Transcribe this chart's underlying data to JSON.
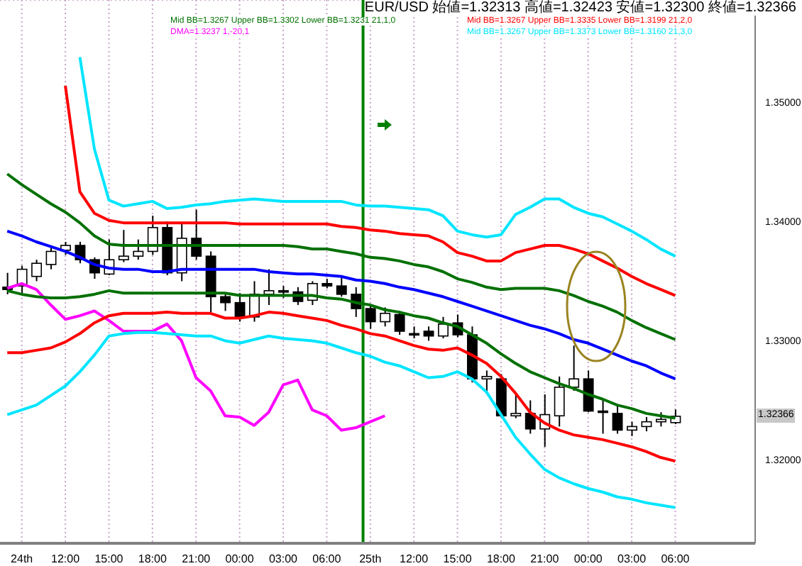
{
  "chart_data": {
    "type": "candlestick",
    "categories": [
      null,
      "24th",
      null,
      null,
      "12:00",
      null,
      null,
      "15:00",
      null,
      null,
      "18:00",
      null,
      null,
      "21:00",
      null,
      null,
      "00:00",
      null,
      null,
      "03:00",
      null,
      null,
      "06:00",
      null,
      null,
      "25th",
      null,
      null,
      "12:00",
      null,
      null,
      "15:00",
      null,
      null,
      "18:00",
      null,
      null,
      "21:00",
      null,
      null,
      "00:00",
      null,
      null,
      "03:00",
      null,
      null,
      "06:00",
      null,
      null,
      null,
      null,
      null
    ],
    "ohlc": [
      [
        1.3345,
        1.3357,
        1.3339,
        1.3343
      ],
      [
        1.3346,
        1.3363,
        1.334,
        1.336
      ],
      [
        1.3354,
        1.3368,
        1.335,
        1.3365
      ],
      [
        1.3364,
        1.338,
        1.336,
        1.3375
      ],
      [
        1.3376,
        1.3383,
        1.3372,
        1.338
      ],
      [
        1.338,
        1.3383,
        1.3365,
        1.3368
      ],
      [
        1.3368,
        1.337,
        1.3352,
        1.3357
      ],
      [
        1.3356,
        1.3385,
        1.3355,
        1.3368
      ],
      [
        1.3368,
        1.3393,
        1.3366,
        1.3371
      ],
      [
        1.3371,
        1.3385,
        1.3368,
        1.3375
      ],
      [
        1.3375,
        1.3405,
        1.3372,
        1.3395
      ],
      [
        1.3395,
        1.34,
        1.3355,
        1.3357
      ],
      [
        1.3357,
        1.3398,
        1.335,
        1.3386
      ],
      [
        1.3386,
        1.341,
        1.3368,
        1.3371
      ],
      [
        1.3371,
        1.3375,
        1.3324,
        1.3337
      ],
      [
        1.3337,
        1.334,
        1.3325,
        1.3332
      ],
      [
        1.3332,
        1.334,
        1.3316,
        1.332
      ],
      [
        1.332,
        1.335,
        1.3316,
        1.3339
      ],
      [
        1.3339,
        1.336,
        1.333,
        1.3342
      ],
      [
        1.3342,
        1.3346,
        1.3336,
        1.3341
      ],
      [
        1.3341,
        1.3345,
        1.333,
        1.3333
      ],
      [
        1.3334,
        1.335,
        1.333,
        1.3348
      ],
      [
        1.3348,
        1.3352,
        1.3344,
        1.3346
      ],
      [
        1.3346,
        1.3355,
        1.3337,
        1.3339
      ],
      [
        1.3339,
        1.3345,
        1.332,
        1.3327
      ],
      [
        1.3327,
        1.333,
        1.331,
        1.3316
      ],
      [
        1.3316,
        1.3328,
        1.3312,
        1.3323
      ],
      [
        1.3322,
        1.3325,
        1.3305,
        1.3308
      ],
      [
        1.3306,
        1.3312,
        1.3302,
        1.3305
      ],
      [
        1.3308,
        1.3312,
        1.33,
        1.3304
      ],
      [
        1.3304,
        1.332,
        1.3302,
        1.3314
      ],
      [
        1.3315,
        1.3322,
        1.3303,
        1.3305
      ],
      [
        1.3305,
        1.3312,
        1.3265,
        1.3268
      ],
      [
        1.3268,
        1.3275,
        1.3255,
        1.327
      ],
      [
        1.3268,
        1.3272,
        1.3236,
        1.3237
      ],
      [
        1.3237,
        1.3255,
        1.3235,
        1.3239
      ],
      [
        1.3239,
        1.325,
        1.3222,
        1.3226
      ],
      [
        1.3226,
        1.3255,
        1.3211,
        1.3238
      ],
      [
        1.3237,
        1.327,
        1.3228,
        1.3261
      ],
      [
        1.3261,
        1.3296,
        1.3258,
        1.3268
      ],
      [
        1.3268,
        1.3275,
        1.324,
        1.3241
      ],
      [
        1.3241,
        1.325,
        1.3222,
        1.324
      ],
      [
        1.3239,
        1.3245,
        1.3222,
        1.3225
      ],
      [
        1.3225,
        1.3232,
        1.322,
        1.3228
      ],
      [
        1.3228,
        1.3236,
        1.3224,
        1.3232
      ],
      [
        1.3232,
        1.324,
        1.3228,
        1.3234
      ],
      [
        1.32313,
        1.32423,
        1.323,
        1.32366
      ],
      null,
      null,
      null,
      null,
      null
    ],
    "series": [
      {
        "type": "line",
        "name": "Mid BB=1.3267 Upper BB=1.3302 Lower BB=1.3231  21,1,0",
        "color": "#007000",
        "values": [
          1.344,
          1.3431,
          1.3423,
          1.3415,
          1.3408,
          1.3399,
          1.3388,
          1.3381,
          1.338,
          1.338,
          1.338,
          1.338,
          1.338,
          1.338,
          1.338,
          1.338,
          1.338,
          1.338,
          1.338,
          1.338,
          1.3379,
          1.3377,
          1.3377,
          1.3375,
          1.3373,
          1.337,
          1.3369,
          1.3367,
          1.3364,
          1.3362,
          1.3358,
          1.3352,
          1.3349,
          1.3345,
          1.3343,
          1.3344,
          1.3344,
          1.3344,
          1.3342,
          1.3338,
          1.3333,
          1.3329,
          1.3324,
          1.3317,
          1.3311,
          1.3306,
          1.3301,
          null,
          null,
          null,
          null,
          null
        ]
      },
      {
        "type": "line",
        "name": "Mid BB=1.3267 Upper BB=1.3335 Lower BB=1.3199  21,2,0",
        "color": "#ff0000",
        "values": [
          null,
          null,
          null,
          null,
          1.3514,
          1.3425,
          1.3407,
          1.3401,
          1.3399,
          1.3399,
          1.3399,
          1.3399,
          1.3399,
          1.3399,
          1.3399,
          1.3399,
          1.3398,
          1.3398,
          1.3398,
          1.3398,
          1.3398,
          1.3398,
          1.3398,
          1.3396,
          1.3395,
          1.3393,
          1.3392,
          1.339,
          1.3389,
          1.3388,
          1.3383,
          1.3374,
          1.3371,
          1.3367,
          1.3367,
          1.3374,
          1.3377,
          1.338,
          1.338,
          1.3377,
          1.3373,
          1.3367,
          1.3361,
          1.3354,
          1.3348,
          1.3343,
          1.3338,
          null,
          null,
          null,
          null,
          null
        ]
      },
      {
        "type": "line",
        "name": "DMA=1.3237  1,-20,1",
        "color": "#ff00ff",
        "values": [
          1.3344,
          1.3348,
          1.3343,
          1.333,
          1.3318,
          1.3321,
          1.3325,
          1.3317,
          1.3308,
          1.3308,
          1.3308,
          1.3314,
          1.33,
          1.3269,
          1.3258,
          1.3237,
          1.3236,
          1.3229,
          1.324,
          1.3263,
          1.3267,
          1.3242,
          1.3237,
          1.3225,
          1.3227,
          1.3232,
          1.3237,
          null,
          null,
          null,
          null,
          null,
          null,
          null,
          null,
          null,
          null,
          null,
          null,
          null,
          null,
          null,
          null,
          null,
          null,
          null,
          null,
          null,
          null,
          null,
          null,
          null
        ]
      },
      {
        "type": "line",
        "name": "Mid BB=1.3267 Upper BB=1.3373 Lower BB=1.3160  21,3,0",
        "color": "#00e5ff",
        "values": [
          null,
          null,
          null,
          null,
          null,
          1.3538,
          1.3461,
          1.3418,
          1.3413,
          1.3415,
          1.3417,
          1.3411,
          1.3412,
          1.3414,
          1.3415,
          1.3417,
          1.3418,
          1.3419,
          1.3418,
          1.3417,
          1.3417,
          1.3417,
          1.3417,
          1.3417,
          1.3414,
          1.3413,
          1.3413,
          1.3412,
          1.3411,
          1.341,
          1.3405,
          1.3392,
          1.3389,
          1.3387,
          1.3389,
          1.3406,
          1.3412,
          1.3419,
          1.3419,
          1.3412,
          1.3407,
          1.3404,
          1.3398,
          1.3392,
          1.3385,
          1.3377,
          1.3371,
          null,
          null,
          null,
          null,
          null
        ]
      },
      {
        "type": "line",
        "color": "#0000ff",
        "values": [
          1.3392,
          1.3388,
          1.3383,
          1.3379,
          1.3375,
          1.337,
          1.3364,
          1.3361,
          1.336,
          1.336,
          1.3358,
          1.3358,
          1.336,
          1.336,
          1.336,
          1.336,
          1.336,
          1.336,
          1.3358,
          1.3357,
          1.3356,
          1.3356,
          1.3355,
          1.3354,
          1.3351,
          1.335,
          1.3348,
          1.3345,
          1.3343,
          1.334,
          1.3337,
          1.3333,
          1.3329,
          1.3325,
          1.3321,
          1.3317,
          1.3313,
          1.331,
          1.3306,
          1.3301,
          1.3298,
          1.3293,
          1.3288,
          1.3283,
          1.3279,
          1.3273,
          1.3268,
          null,
          null,
          null,
          null,
          null
        ]
      },
      {
        "type": "line",
        "color": "#007000",
        "values": [
          1.3342,
          1.3339,
          1.3337,
          1.3336,
          1.3336,
          1.3337,
          1.3339,
          1.3342,
          1.334,
          1.334,
          1.334,
          1.334,
          1.334,
          1.334,
          1.334,
          1.334,
          1.3338,
          1.3338,
          1.3338,
          1.3338,
          1.3338,
          1.3338,
          1.3336,
          1.3335,
          1.3332,
          1.333,
          1.3326,
          1.3324,
          1.3321,
          1.3319,
          1.3315,
          1.3312,
          1.3305,
          1.3298,
          1.3289,
          1.3281,
          1.3274,
          1.3269,
          1.3264,
          1.326,
          1.3255,
          1.3251,
          1.3246,
          1.3243,
          1.3239,
          1.3237,
          1.3235,
          null,
          null,
          null,
          null,
          null
        ]
      },
      {
        "type": "line",
        "color": "#ff0000",
        "values": [
          1.329,
          1.329,
          1.3292,
          1.3294,
          1.3299,
          1.3306,
          1.3315,
          1.3321,
          1.3323,
          1.3323,
          1.3323,
          1.3324,
          1.3323,
          1.3323,
          1.3323,
          1.3319,
          1.3319,
          1.3321,
          1.3324,
          1.3323,
          1.3321,
          1.3319,
          1.3317,
          1.3313,
          1.331,
          1.3306,
          1.3304,
          1.33,
          1.3296,
          1.3293,
          1.3292,
          1.3294,
          1.3288,
          1.3281,
          1.327,
          1.3256,
          1.324,
          1.3231,
          1.3225,
          1.3221,
          1.3219,
          1.3217,
          1.3214,
          1.3211,
          1.3207,
          1.3202,
          1.3199,
          null,
          null,
          null,
          null,
          null
        ]
      },
      {
        "type": "line",
        "color": "#00e5ff",
        "values": [
          1.3238,
          1.3242,
          1.3246,
          1.3254,
          1.3262,
          1.3274,
          1.3288,
          1.3304,
          1.3306,
          1.3307,
          1.3307,
          1.3306,
          1.3305,
          1.3304,
          1.3304,
          1.33,
          1.3298,
          1.3301,
          1.3304,
          1.3302,
          1.3301,
          1.33,
          1.3298,
          1.3294,
          1.329,
          1.3287,
          1.3282,
          1.3279,
          1.3274,
          1.3269,
          1.327,
          1.3274,
          1.3268,
          1.3257,
          1.3238,
          1.3219,
          1.3205,
          1.3192,
          1.3185,
          1.318,
          1.3176,
          1.3173,
          1.3169,
          1.3167,
          1.3164,
          1.3162,
          1.316,
          null,
          null,
          null,
          null,
          null
        ]
      }
    ],
    "ylim": [
      1.313,
      1.3586
    ],
    "yticks": [
      {
        "value": 1.32,
        "label": "1.32000"
      },
      {
        "value": 1.33,
        "label": "1.33000"
      },
      {
        "value": 1.34,
        "label": "1.34000"
      },
      {
        "value": 1.35,
        "label": "1.35000"
      }
    ],
    "ref_lines": [
      {
        "axis": "x",
        "value": "25th",
        "color": "#008000"
      }
    ],
    "annotations": [
      "EUR/USD 始値=1.32313 高値=1.32423 安値=1.32300 終値=1.32366",
      {
        "text": "1.32366",
        "y": 1.32366
      }
    ],
    "grid": true,
    "legend": "top",
    "marker": "none",
    "line_style": "solid"
  }
}
